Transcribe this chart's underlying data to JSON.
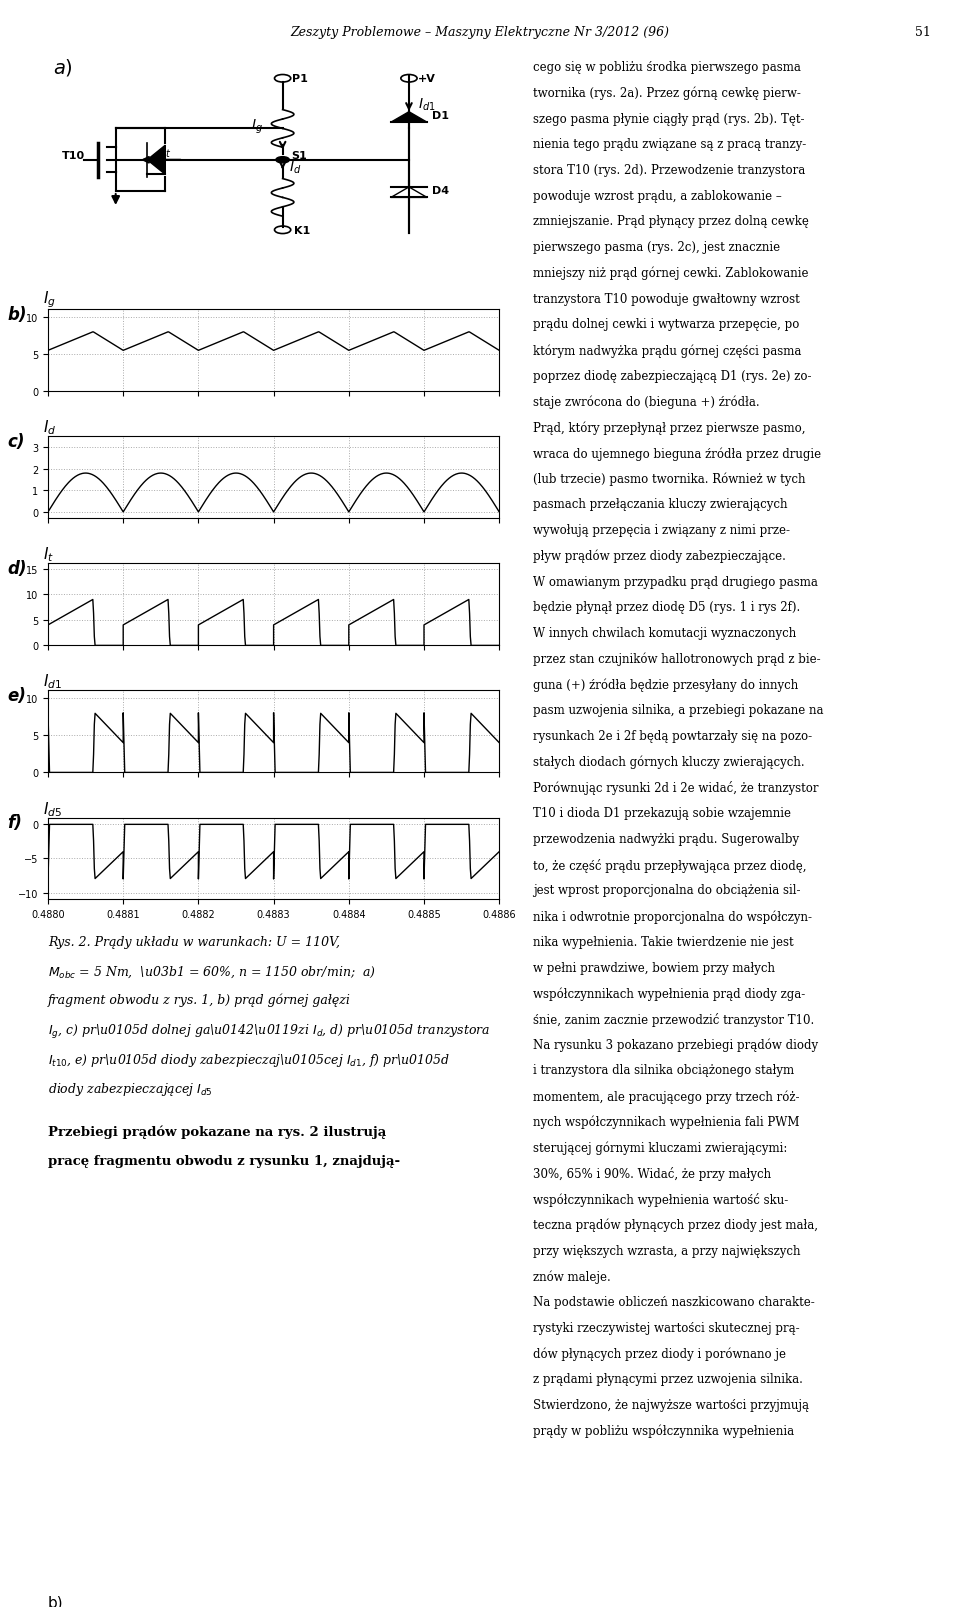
{
  "title_header": "Zeszyty Problemowe – Maszyny Elektryczne Nr 3/2012 (96)",
  "page_number": "51",
  "x_min": 0.488,
  "x_max": 0.4886,
  "x_ticks": [
    0.488,
    0.4881,
    0.4882,
    0.4883,
    0.4884,
    0.4885,
    0.4886
  ],
  "plot_b_ylim": [
    0,
    11
  ],
  "plot_b_yticks": [
    0,
    5,
    10
  ],
  "plot_b_label": "$I_g$",
  "plot_c_ylim": [
    -0.3,
    3.5
  ],
  "plot_c_yticks": [
    0,
    1,
    2,
    3
  ],
  "plot_c_label": "$I_d$",
  "plot_d_ylim": [
    0,
    16
  ],
  "plot_d_yticks": [
    0,
    5,
    10,
    15
  ],
  "plot_d_label": "$I_t$",
  "plot_e_ylim": [
    0,
    11
  ],
  "plot_e_yticks": [
    0,
    5,
    10
  ],
  "plot_e_label": "$I_{d1}$",
  "plot_f_ylim": [
    -11,
    1
  ],
  "plot_f_yticks": [
    -10,
    -5,
    0
  ],
  "plot_f_label": "$I_{d5}$",
  "caption_line1": "Rys. 2. Prądy układu w warunkach: U = 110V,",
  "caption_line2": "M_{obc} = 5 Nm,  α = 60%, n = 1150 obr/min;  a)",
  "caption_line3": "fragment obwodu z rys. 1, b) prąd górnej gałęzi",
  "caption_line4": "I_g, c) prąd dolnej gałęzi I_d, d) prąd tranzystora",
  "caption_line5": "I_{t10}, e) prąd diody zabezpieczającej I_{d1}, f) prąd",
  "caption_line6": "diody zabezpieczającej I_{d5}",
  "text_line1": "Przebiegi prądów pokazane na rys. 2 ilustrują",
  "text_line2": "pracę fragmentu obwodu z rysunku 1, znajdują-",
  "background_color": "#ffffff",
  "line_color": "#000000",
  "grid_color": "#aaaaaa"
}
